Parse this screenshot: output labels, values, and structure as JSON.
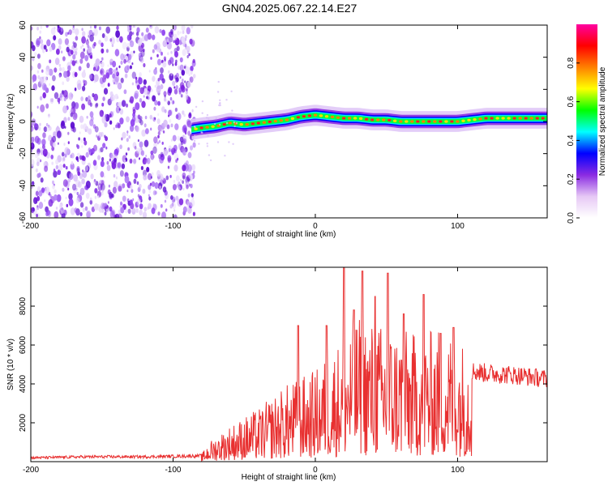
{
  "title": "GN04.2025.067.22.14.E27",
  "chart_data": [
    {
      "type": "heatmap",
      "xlabel": "Height of straight line (km)",
      "ylabel": "Frequency (Hz)",
      "xlim": [
        -200,
        163
      ],
      "ylim": [
        -60,
        60
      ],
      "xticks": [
        -200,
        -100,
        0,
        100
      ],
      "yticks": [
        -60,
        -40,
        -20,
        0,
        20,
        40,
        60
      ],
      "noise_region_x": [
        -200,
        -85
      ],
      "ridge": {
        "x": [
          -87,
          -80,
          -70,
          -60,
          -50,
          -40,
          -30,
          -20,
          -10,
          0,
          10,
          20,
          30,
          40,
          50,
          60,
          70,
          80,
          90,
          100,
          110,
          120,
          130,
          140,
          150,
          163
        ],
        "y": [
          -5,
          -4,
          -3,
          -1,
          -2,
          -1,
          0,
          1,
          3,
          4,
          3,
          2,
          2,
          1,
          1,
          0,
          0,
          0,
          0,
          0,
          1,
          2,
          2,
          2,
          2,
          2
        ]
      },
      "colorbar": {
        "label": "Normalized spectral amplitude",
        "range": [
          0,
          1
        ],
        "ticks": [
          0.0,
          0.2,
          0.4,
          0.6,
          0.8
        ],
        "colors": [
          "#ffffff",
          "#e6c8f5",
          "#8a2be2",
          "#0000ff",
          "#00ffff",
          "#00ff00",
          "#ffff00",
          "#ff8000",
          "#ff0000",
          "#ff00a0"
        ]
      }
    },
    {
      "type": "line",
      "xlabel": "Height of straight line (km)",
      "ylabel": "SNR (10 * v/v)",
      "xlim": [
        -200,
        163
      ],
      "ylim": [
        0,
        10000
      ],
      "xticks": [
        -200,
        -100,
        0,
        100
      ],
      "yticks": [
        2000,
        4000,
        6000,
        8000
      ],
      "color": "#e83030",
      "envelope": {
        "x": [
          -200,
          -160,
          -120,
          -80,
          -75,
          -60,
          -40,
          -20,
          0,
          20,
          30,
          40,
          50,
          60,
          70,
          80,
          90,
          100,
          110,
          120,
          140,
          163
        ],
        "y": [
          200,
          250,
          250,
          300,
          800,
          1500,
          2200,
          3200,
          3800,
          5200,
          6000,
          5800,
          5600,
          5500,
          5300,
          5400,
          5600,
          5200,
          4700,
          4600,
          4500,
          4300
        ]
      },
      "spikes": [
        {
          "x": -12,
          "y": 7000
        },
        {
          "x": 8,
          "y": 7000
        },
        {
          "x": 20,
          "y": 10000
        },
        {
          "x": 27,
          "y": 7800
        },
        {
          "x": 33,
          "y": 9800
        },
        {
          "x": 42,
          "y": 8500
        },
        {
          "x": 51,
          "y": 9700
        },
        {
          "x": 62,
          "y": 7600
        },
        {
          "x": 76,
          "y": 8600
        },
        {
          "x": 88,
          "y": 6600
        },
        {
          "x": 97,
          "y": 6900
        }
      ]
    }
  ]
}
